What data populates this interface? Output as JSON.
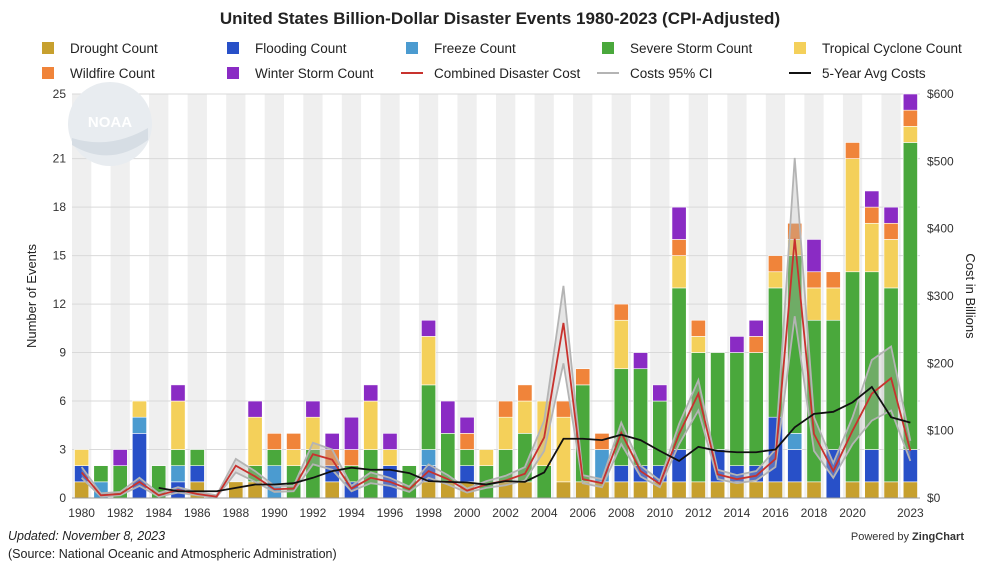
{
  "footer": {
    "updated": "Updated: November 8, 2023",
    "source": "(Source: National Oceanic and Atmospheric Administration)",
    "powered_prefix": "Powered by ",
    "powered_brand": "ZingChart"
  },
  "logo_text": "NOAA",
  "chart_data": {
    "type": "bar",
    "stacked": true,
    "title": "United States Billion-Dollar Disaster Events 1980-2023 (CPI-Adjusted)",
    "ylabel": "Number of Events",
    "y2label": "Cost in Billions",
    "ylim": [
      0,
      25
    ],
    "y2lim": [
      0,
      600
    ],
    "yticks": [
      "0",
      "3",
      "6",
      "9",
      "12",
      "15",
      "18",
      "21",
      "25"
    ],
    "y2ticks": [
      "$0",
      "$100",
      "$200",
      "$300",
      "$400",
      "$500",
      "$600"
    ],
    "xtick_labels": [
      "1980",
      "1982",
      "1984",
      "1986",
      "1988",
      "1990",
      "1992",
      "1994",
      "1996",
      "1998",
      "2000",
      "2002",
      "2004",
      "2006",
      "2008",
      "2010",
      "2012",
      "2014",
      "2016",
      "2018",
      "2020",
      "2023"
    ],
    "categories": [
      1980,
      1981,
      1982,
      1983,
      1984,
      1985,
      1986,
      1987,
      1988,
      1989,
      1990,
      1991,
      1992,
      1993,
      1994,
      1995,
      1996,
      1997,
      1998,
      1999,
      2000,
      2001,
      2002,
      2003,
      2004,
      2005,
      2006,
      2007,
      2008,
      2009,
      2010,
      2011,
      2012,
      2013,
      2014,
      2015,
      2016,
      2017,
      2018,
      2019,
      2020,
      2021,
      2022,
      2023
    ],
    "legend_position": "top",
    "grid": true,
    "series": [
      {
        "name": "Drought Count",
        "type": "bar",
        "color": "#c7a02e",
        "values": [
          1,
          0,
          0,
          0,
          0,
          0,
          1,
          0,
          1,
          1,
          0,
          0,
          0,
          1,
          0,
          0,
          0,
          0,
          1,
          1,
          1,
          0,
          1,
          1,
          0,
          1,
          1,
          1,
          1,
          1,
          1,
          1,
          1,
          1,
          1,
          1,
          1,
          1,
          1,
          0,
          1,
          1,
          1,
          1
        ]
      },
      {
        "name": "Flooding Count",
        "type": "bar",
        "color": "#2850c8",
        "values": [
          1,
          0,
          0,
          4,
          0,
          1,
          1,
          0,
          0,
          0,
          0,
          0,
          0,
          1,
          1,
          0,
          2,
          0,
          1,
          0,
          1,
          0,
          0,
          0,
          0,
          0,
          0,
          0,
          1,
          1,
          1,
          2,
          0,
          2,
          1,
          1,
          4,
          2,
          0,
          3,
          0,
          2,
          0,
          2
        ]
      },
      {
        "name": "Freeze Count",
        "type": "bar",
        "color": "#4b9bd0",
        "values": [
          0,
          1,
          0,
          1,
          0,
          1,
          0,
          0,
          0,
          0,
          2,
          0,
          0,
          0,
          0,
          0,
          0,
          0,
          1,
          0,
          0,
          0,
          0,
          0,
          0,
          0,
          0,
          2,
          0,
          0,
          0,
          0,
          0,
          0,
          0,
          0,
          0,
          1,
          0,
          0,
          0,
          0,
          0,
          0
        ]
      },
      {
        "name": "Severe Storm Count",
        "type": "bar",
        "color": "#4aa83c",
        "values": [
          0,
          1,
          2,
          0,
          2,
          1,
          1,
          0,
          0,
          1,
          1,
          2,
          3,
          0,
          1,
          3,
          0,
          2,
          4,
          3,
          1,
          2,
          2,
          3,
          2,
          0,
          6,
          0,
          6,
          6,
          4,
          10,
          8,
          6,
          7,
          7,
          8,
          11,
          10,
          8,
          13,
          11,
          12,
          19
        ]
      },
      {
        "name": "Tropical Cyclone Count",
        "type": "bar",
        "color": "#f4d05a",
        "values": [
          1,
          0,
          0,
          1,
          0,
          3,
          0,
          0,
          0,
          3,
          0,
          1,
          2,
          0,
          0,
          3,
          1,
          0,
          3,
          0,
          0,
          1,
          2,
          2,
          4,
          4,
          0,
          0,
          3,
          0,
          0,
          2,
          1,
          0,
          0,
          0,
          1,
          1,
          2,
          2,
          7,
          3,
          3,
          1
        ]
      },
      {
        "name": "Wildfire Count",
        "type": "bar",
        "color": "#f0843a",
        "values": [
          0,
          0,
          0,
          0,
          0,
          0,
          0,
          0,
          0,
          0,
          1,
          1,
          0,
          1,
          1,
          0,
          0,
          0,
          0,
          0,
          1,
          0,
          1,
          1,
          0,
          1,
          1,
          1,
          1,
          0,
          0,
          1,
          1,
          0,
          0,
          1,
          1,
          1,
          1,
          1,
          1,
          1,
          1,
          1
        ]
      },
      {
        "name": "Winter Storm Count",
        "type": "bar",
        "color": "#8a2bc4",
        "values": [
          0,
          0,
          1,
          0,
          0,
          1,
          0,
          0,
          0,
          1,
          0,
          0,
          1,
          1,
          2,
          1,
          1,
          0,
          1,
          2,
          1,
          0,
          0,
          0,
          0,
          0,
          0,
          0,
          0,
          1,
          1,
          2,
          0,
          0,
          1,
          1,
          0,
          0,
          2,
          0,
          0,
          1,
          1,
          1
        ]
      },
      {
        "name": "Combined Disaster Cost",
        "type": "line",
        "axis": "y2",
        "color": "#c8322e",
        "values": [
          38,
          4,
          6,
          24,
          4,
          12,
          6,
          2,
          48,
          32,
          13,
          14,
          65,
          57,
          14,
          30,
          24,
          13,
          40,
          28,
          11,
          20,
          26,
          36,
          90,
          260,
          28,
          22,
          97,
          40,
          21,
          95,
          155,
          35,
          28,
          33,
          58,
          385,
          95,
          40,
          100,
          155,
          178,
          70
        ]
      },
      {
        "name": "Costs 95% CI",
        "type": "band",
        "axis": "y2",
        "color": "#b4b4b4",
        "upper": [
          46,
          7,
          9,
          30,
          7,
          16,
          9,
          4,
          58,
          40,
          18,
          18,
          82,
          72,
          18,
          38,
          30,
          17,
          50,
          34,
          14,
          25,
          33,
          46,
          115,
          315,
          34,
          28,
          112,
          48,
          26,
          110,
          175,
          42,
          34,
          40,
          72,
          505,
          120,
          52,
          120,
          205,
          225,
          85
        ],
        "lower": [
          30,
          2,
          4,
          18,
          2,
          8,
          4,
          1,
          38,
          24,
          9,
          10,
          50,
          42,
          10,
          22,
          18,
          9,
          30,
          20,
          8,
          15,
          19,
          26,
          70,
          200,
          22,
          16,
          80,
          32,
          16,
          80,
          130,
          28,
          22,
          26,
          46,
          270,
          70,
          30,
          80,
          115,
          130,
          55
        ]
      },
      {
        "name": "5-Year Avg Costs",
        "type": "line",
        "axis": "y2",
        "color": "#111111",
        "values": [
          null,
          null,
          null,
          null,
          15,
          10,
          10,
          10,
          15,
          20,
          20,
          22,
          30,
          40,
          45,
          42,
          42,
          37,
          25,
          24,
          23,
          20,
          25,
          24,
          38,
          88,
          88,
          86,
          94,
          86,
          70,
          55,
          76,
          70,
          68,
          68,
          72,
          105,
          125,
          128,
          142,
          165,
          120,
          112
        ]
      }
    ]
  }
}
